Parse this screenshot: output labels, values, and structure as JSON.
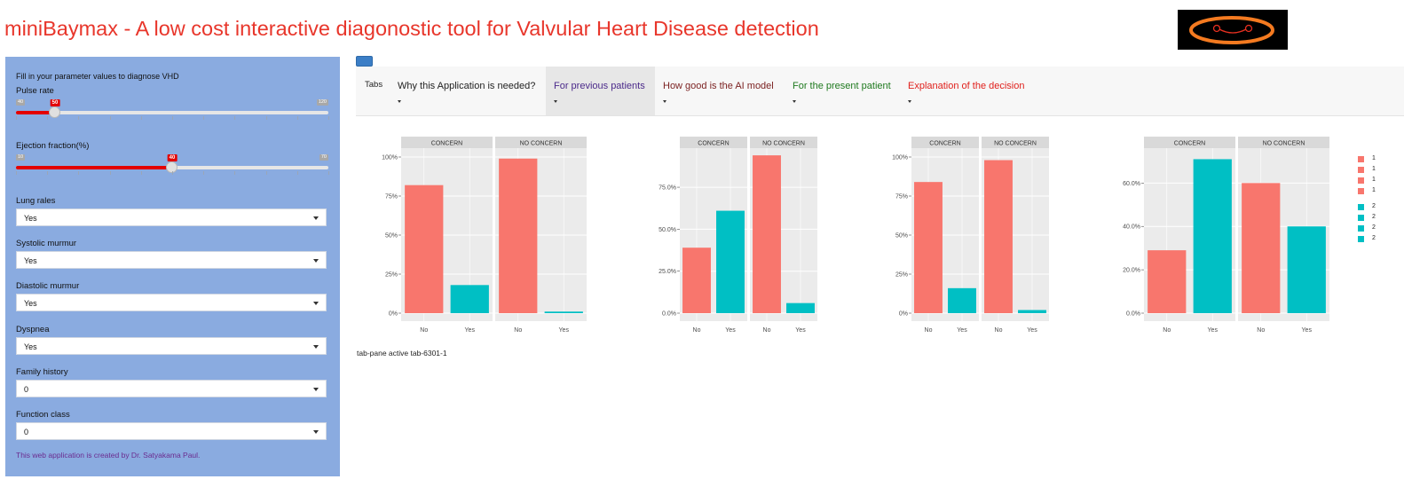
{
  "app": {
    "title": "miniBaymax - A low cost interactive diagonostic tool for Valvular Heart Disease detection"
  },
  "sidebar": {
    "intro": "Fill in your parameter values to diagnose VHD",
    "pulse": {
      "label": "Pulse rate",
      "min": "40",
      "max": "120",
      "value": "50",
      "fraction": 0.125
    },
    "ejection": {
      "label": "Ejection fraction(%)",
      "min": "10",
      "max": "70",
      "value": "40",
      "fraction": 0.5
    },
    "lung_rales": {
      "label": "Lung rales",
      "value": "Yes"
    },
    "systolic": {
      "label": "Systolic murmur",
      "value": "Yes"
    },
    "diastolic": {
      "label": "Diastolic murmur",
      "value": "Yes"
    },
    "dyspnea": {
      "label": "Dyspnea",
      "value": "Yes"
    },
    "family_history": {
      "label": "Family history",
      "value": "0"
    },
    "function_class": {
      "label": "Function class",
      "value": "0"
    },
    "credit": "This web application is created by Dr. Satyakama Paul."
  },
  "tabs": {
    "label": "Tabs",
    "items": [
      {
        "label": "Why this Application is needed?",
        "color": "#222222"
      },
      {
        "label": "For previous patients",
        "color": "#4b2a8a"
      },
      {
        "label": "How good is the AI model",
        "color": "#7a1f1f"
      },
      {
        "label": "For the present patient",
        "color": "#1f7a1f"
      },
      {
        "label": "Explanation of the decision",
        "color": "#e0201c"
      }
    ]
  },
  "footer_text": "tab-pane active tab-6301-1",
  "colors": {
    "no": "#f8766d",
    "yes": "#00bfc4",
    "panel_bg": "#ebebeb",
    "strip": "#d9d9d9"
  },
  "legend": [
    {
      "label": "1",
      "color": "#f8766d"
    },
    {
      "label": "1",
      "color": "#f8766d"
    },
    {
      "label": "1",
      "color": "#f8766d"
    },
    {
      "label": "1",
      "color": "#f8766d"
    },
    {
      "label": "2",
      "color": "#00bfc4"
    },
    {
      "label": "2",
      "color": "#00bfc4"
    },
    {
      "label": "2",
      "color": "#00bfc4"
    },
    {
      "label": "2",
      "color": "#00bfc4"
    }
  ],
  "chart_data": [
    {
      "type": "bar",
      "ylim": [
        0,
        1
      ],
      "yticks": [
        "0%",
        "25%",
        "50%",
        "75%",
        "100%"
      ],
      "ytick_vals": [
        0,
        0.25,
        0.5,
        0.75,
        1.0
      ],
      "categories": [
        "No",
        "Yes"
      ],
      "facets": [
        {
          "label": "CONCERN",
          "values": [
            0.82,
            0.18
          ]
        },
        {
          "label": "NO CONCERN",
          "values": [
            0.99,
            0.01
          ]
        }
      ]
    },
    {
      "type": "bar",
      "ylim": [
        0,
        0.93
      ],
      "yticks": [
        "0.0%",
        "25.0%",
        "50.0%",
        "75.0%"
      ],
      "ytick_vals": [
        0,
        0.25,
        0.5,
        0.75
      ],
      "categories": [
        "No",
        "Yes"
      ],
      "facets": [
        {
          "label": "CONCERN",
          "values": [
            0.39,
            0.61
          ]
        },
        {
          "label": "NO CONCERN",
          "values": [
            0.94,
            0.06
          ]
        }
      ]
    },
    {
      "type": "bar",
      "ylim": [
        0,
        1
      ],
      "yticks": [
        "0%",
        "25%",
        "50%",
        "75%",
        "100%"
      ],
      "ytick_vals": [
        0,
        0.25,
        0.5,
        0.75,
        1.0
      ],
      "categories": [
        "No",
        "Yes"
      ],
      "facets": [
        {
          "label": "CONCERN",
          "values": [
            0.84,
            0.16
          ]
        },
        {
          "label": "NO CONCERN",
          "values": [
            0.98,
            0.02
          ]
        }
      ]
    },
    {
      "type": "bar",
      "ylim": [
        0,
        0.72
      ],
      "yticks": [
        "0.0%",
        "20.0%",
        "40.0%",
        "60.0%"
      ],
      "ytick_vals": [
        0,
        0.2,
        0.4,
        0.6
      ],
      "categories": [
        "No",
        "Yes"
      ],
      "facets": [
        {
          "label": "CONCERN",
          "values": [
            0.29,
            0.71
          ]
        },
        {
          "label": "NO CONCERN",
          "values": [
            0.6,
            0.4
          ]
        }
      ]
    }
  ]
}
